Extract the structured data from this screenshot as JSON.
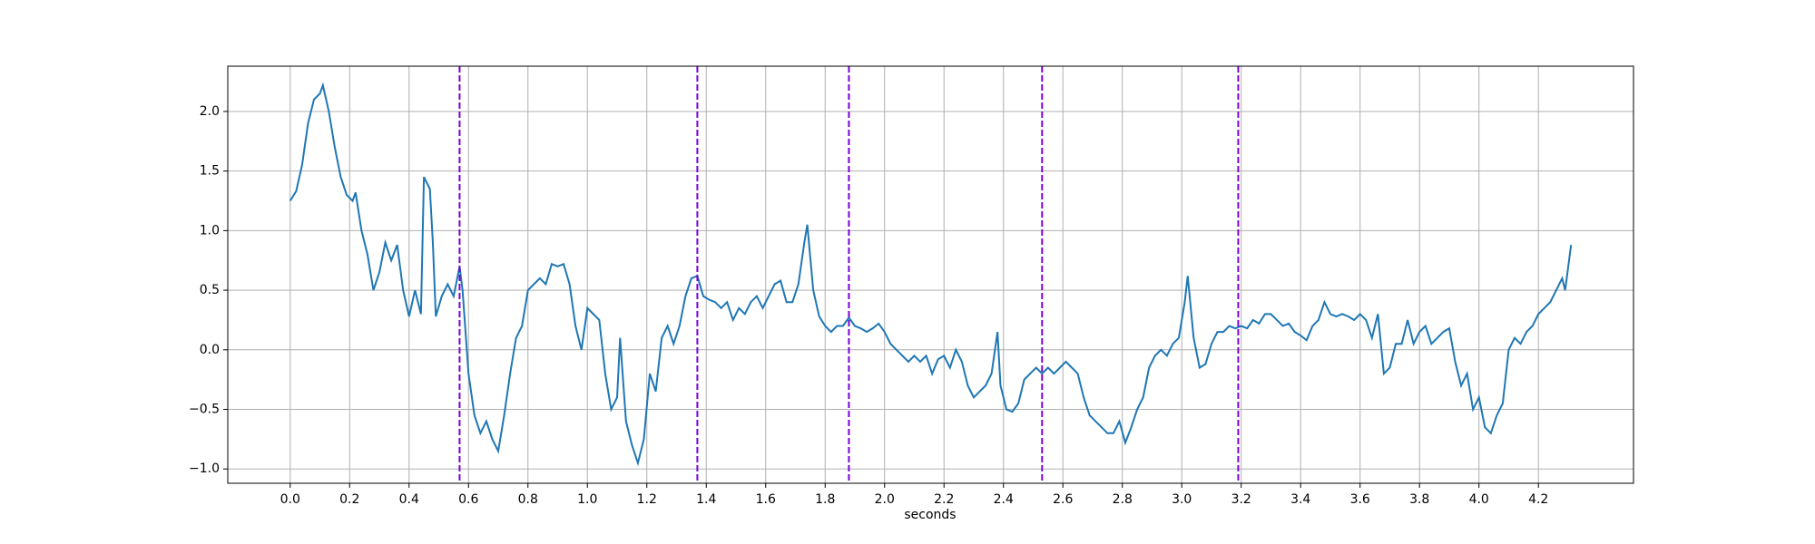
{
  "chart_data": {
    "type": "line",
    "x_label": "seconds",
    "color": "#1f77b4",
    "grid": true,
    "xlim": [
      -0.21,
      4.52
    ],
    "ylim": [
      -1.12,
      2.38
    ],
    "xticks": [
      {
        "value": 0,
        "label": "0.0"
      },
      0.2,
      0.4,
      0.6,
      0.8,
      {
        "value": 1,
        "label": "1.0"
      },
      1.2,
      1.4,
      1.6,
      1.8,
      {
        "value": 2,
        "label": "2.0"
      },
      2.2,
      2.4,
      2.6,
      2.8,
      {
        "value": 3,
        "label": "3.0"
      },
      3.2,
      3.4,
      3.6,
      3.8,
      {
        "value": 4,
        "label": "4.0"
      },
      4.2
    ],
    "yticks": [
      {
        "value": -1,
        "label": "−1.0"
      },
      {
        "value": -0.5,
        "label": "−0.5"
      },
      {
        "value": 0,
        "label": "0.0"
      },
      0.5,
      {
        "value": 1,
        "label": "1.0"
      },
      1.5,
      {
        "value": 2,
        "label": "2.0"
      }
    ],
    "vlines": {
      "color": "#7a00d9",
      "values": [
        0.57,
        1.37,
        1.88,
        2.53,
        3.19
      ]
    },
    "x": [
      0.0,
      0.02,
      0.04,
      0.06,
      0.08,
      0.1,
      0.11,
      0.13,
      0.15,
      0.17,
      0.19,
      0.21,
      0.22,
      0.24,
      0.26,
      0.28,
      0.3,
      0.32,
      0.34,
      0.36,
      0.38,
      0.4,
      0.42,
      0.44,
      0.45,
      0.47,
      0.48,
      0.49,
      0.51,
      0.53,
      0.55,
      0.57,
      0.58,
      0.6,
      0.62,
      0.64,
      0.66,
      0.68,
      0.7,
      0.72,
      0.74,
      0.76,
      0.78,
      0.8,
      0.82,
      0.84,
      0.86,
      0.88,
      0.9,
      0.92,
      0.94,
      0.96,
      0.98,
      1.0,
      1.02,
      1.04,
      1.06,
      1.08,
      1.1,
      1.11,
      1.13,
      1.15,
      1.17,
      1.19,
      1.21,
      1.23,
      1.25,
      1.27,
      1.29,
      1.31,
      1.33,
      1.35,
      1.37,
      1.39,
      1.41,
      1.43,
      1.45,
      1.47,
      1.49,
      1.51,
      1.53,
      1.55,
      1.57,
      1.59,
      1.61,
      1.63,
      1.65,
      1.67,
      1.69,
      1.71,
      1.73,
      1.74,
      1.76,
      1.78,
      1.8,
      1.82,
      1.84,
      1.86,
      1.88,
      1.9,
      1.92,
      1.94,
      1.96,
      1.98,
      2.0,
      2.02,
      2.04,
      2.06,
      2.08,
      2.1,
      2.12,
      2.14,
      2.16,
      2.18,
      2.2,
      2.22,
      2.24,
      2.26,
      2.28,
      2.3,
      2.32,
      2.34,
      2.36,
      2.38,
      2.39,
      2.41,
      2.43,
      2.45,
      2.47,
      2.49,
      2.51,
      2.53,
      2.55,
      2.57,
      2.59,
      2.61,
      2.63,
      2.65,
      2.67,
      2.69,
      2.71,
      2.73,
      2.75,
      2.77,
      2.79,
      2.81,
      2.83,
      2.85,
      2.87,
      2.89,
      2.91,
      2.93,
      2.95,
      2.97,
      2.99,
      3.01,
      3.02,
      3.04,
      3.06,
      3.08,
      3.1,
      3.12,
      3.14,
      3.16,
      3.18,
      3.2,
      3.22,
      3.24,
      3.26,
      3.28,
      3.3,
      3.32,
      3.34,
      3.36,
      3.38,
      3.4,
      3.42,
      3.44,
      3.46,
      3.48,
      3.5,
      3.52,
      3.54,
      3.56,
      3.58,
      3.6,
      3.62,
      3.64,
      3.66,
      3.68,
      3.7,
      3.72,
      3.74,
      3.76,
      3.78,
      3.8,
      3.82,
      3.84,
      3.86,
      3.88,
      3.9,
      3.92,
      3.94,
      3.96,
      3.98,
      4.0,
      4.02,
      4.04,
      4.06,
      4.08,
      4.1,
      4.12,
      4.14,
      4.16,
      4.18,
      4.2,
      4.22,
      4.24,
      4.26,
      4.28,
      4.29,
      4.31
    ],
    "values": [
      1.25,
      1.33,
      1.55,
      1.9,
      2.1,
      2.15,
      2.22,
      2.0,
      1.7,
      1.45,
      1.3,
      1.25,
      1.32,
      1.0,
      0.8,
      0.5,
      0.65,
      0.9,
      0.75,
      0.88,
      0.5,
      0.28,
      0.5,
      0.3,
      1.45,
      1.35,
      0.9,
      0.28,
      0.45,
      0.55,
      0.45,
      0.7,
      0.5,
      -0.2,
      -0.55,
      -0.7,
      -0.6,
      -0.75,
      -0.85,
      -0.55,
      -0.2,
      0.1,
      0.2,
      0.5,
      0.55,
      0.6,
      0.55,
      0.72,
      0.7,
      0.72,
      0.55,
      0.2,
      0.0,
      0.35,
      0.3,
      0.25,
      -0.2,
      -0.5,
      -0.4,
      0.1,
      -0.6,
      -0.8,
      -0.95,
      -0.75,
      -0.2,
      -0.35,
      0.1,
      0.2,
      0.05,
      0.2,
      0.45,
      0.6,
      0.62,
      0.45,
      0.42,
      0.4,
      0.35,
      0.4,
      0.25,
      0.35,
      0.3,
      0.4,
      0.45,
      0.35,
      0.45,
      0.55,
      0.58,
      0.4,
      0.4,
      0.55,
      0.9,
      1.05,
      0.5,
      0.28,
      0.2,
      0.15,
      0.2,
      0.2,
      0.27,
      0.2,
      0.18,
      0.15,
      0.18,
      0.22,
      0.15,
      0.05,
      0.0,
      -0.05,
      -0.1,
      -0.05,
      -0.1,
      -0.05,
      -0.2,
      -0.08,
      -0.05,
      -0.15,
      0.0,
      -0.1,
      -0.3,
      -0.4,
      -0.35,
      -0.3,
      -0.2,
      0.15,
      -0.3,
      -0.5,
      -0.52,
      -0.45,
      -0.25,
      -0.2,
      -0.15,
      -0.2,
      -0.15,
      -0.2,
      -0.15,
      -0.1,
      -0.15,
      -0.2,
      -0.4,
      -0.55,
      -0.6,
      -0.65,
      -0.7,
      -0.7,
      -0.6,
      -0.78,
      -0.65,
      -0.5,
      -0.4,
      -0.15,
      -0.05,
      0.0,
      -0.05,
      0.05,
      0.1,
      0.4,
      0.62,
      0.1,
      -0.15,
      -0.12,
      0.05,
      0.15,
      0.15,
      0.2,
      0.18,
      0.2,
      0.18,
      0.25,
      0.22,
      0.3,
      0.3,
      0.25,
      0.2,
      0.22,
      0.15,
      0.12,
      0.08,
      0.2,
      0.25,
      0.4,
      0.3,
      0.28,
      0.3,
      0.28,
      0.25,
      0.3,
      0.25,
      0.1,
      0.3,
      -0.2,
      -0.15,
      0.05,
      0.05,
      0.25,
      0.05,
      0.15,
      0.2,
      0.05,
      0.1,
      0.15,
      0.18,
      -0.1,
      -0.3,
      -0.2,
      -0.5,
      -0.4,
      -0.65,
      -0.7,
      -0.55,
      -0.45,
      0.0,
      0.1,
      0.05,
      0.15,
      0.2,
      0.3,
      0.35,
      0.4,
      0.5,
      0.6,
      0.5,
      0.88
    ]
  }
}
